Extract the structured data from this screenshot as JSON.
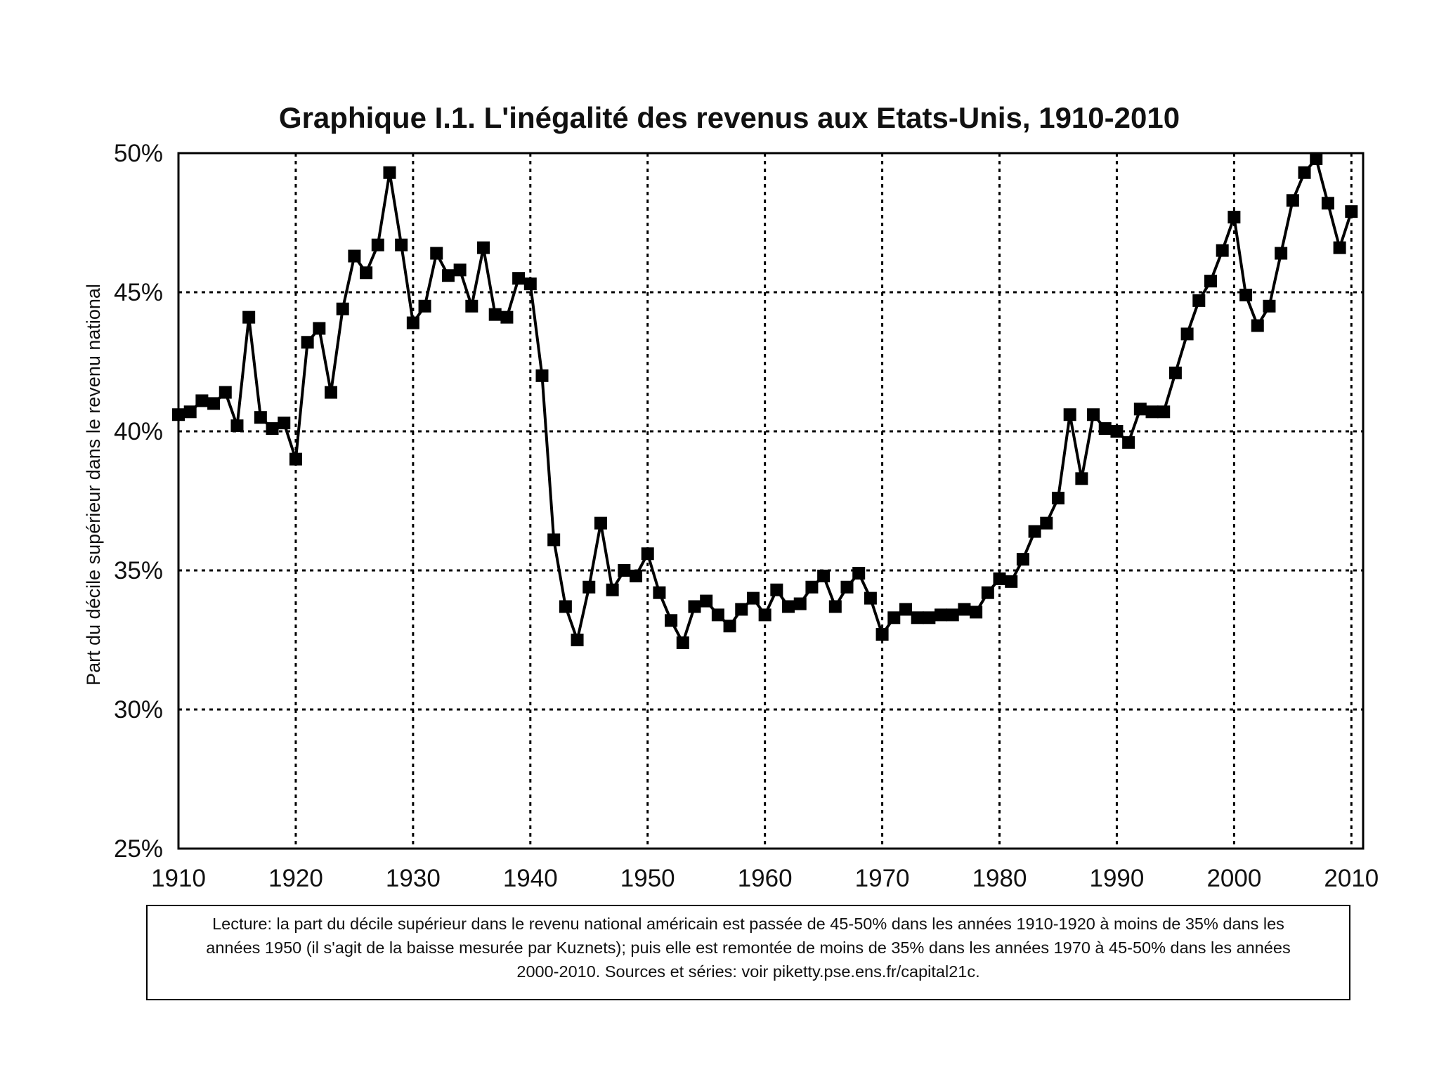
{
  "chart_data": {
    "type": "line",
    "title": "Graphique I.1. L'inégalité des revenus aux Etats-Unis, 1910-2010",
    "xlabel": "",
    "ylabel": "Part du décile supérieur dans le revenu national",
    "xlim": [
      1910,
      2011
    ],
    "ylim": [
      0.25,
      0.5
    ],
    "grid": true,
    "x_ticks": [
      1910,
      1920,
      1930,
      1940,
      1950,
      1960,
      1970,
      1980,
      1990,
      2000,
      2010
    ],
    "x_tick_labels": [
      "1910",
      "1920",
      "1930",
      "1940",
      "1950",
      "1960",
      "1970",
      "1980",
      "1990",
      "2000",
      "2010"
    ],
    "y_ticks": [
      0.25,
      0.3,
      0.35,
      0.4,
      0.45,
      0.5
    ],
    "y_tick_labels": [
      "25%",
      "30%",
      "35%",
      "40%",
      "45%",
      "50%"
    ],
    "series": [
      {
        "color": "#000000",
        "marker": "square",
        "x": [
          1910,
          1911,
          1912,
          1913,
          1914,
          1915,
          1916,
          1917,
          1918,
          1919,
          1920,
          1921,
          1922,
          1923,
          1924,
          1925,
          1926,
          1927,
          1928,
          1929,
          1930,
          1931,
          1932,
          1933,
          1934,
          1935,
          1936,
          1937,
          1938,
          1939,
          1940,
          1941,
          1942,
          1943,
          1944,
          1945,
          1946,
          1947,
          1948,
          1949,
          1950,
          1951,
          1952,
          1953,
          1954,
          1955,
          1956,
          1957,
          1958,
          1959,
          1960,
          1961,
          1962,
          1963,
          1964,
          1965,
          1966,
          1967,
          1968,
          1969,
          1970,
          1971,
          1972,
          1973,
          1974,
          1975,
          1976,
          1977,
          1978,
          1979,
          1980,
          1981,
          1982,
          1983,
          1984,
          1985,
          1986,
          1987,
          1988,
          1989,
          1990,
          1991,
          1992,
          1993,
          1994,
          1995,
          1996,
          1997,
          1998,
          1999,
          2000,
          2001,
          2002,
          2003,
          2004,
          2005,
          2006,
          2007,
          2008,
          2009,
          2010
        ],
        "y": [
          0.406,
          0.407,
          0.411,
          0.41,
          0.414,
          0.402,
          0.441,
          0.405,
          0.401,
          0.403,
          0.39,
          0.432,
          0.437,
          0.414,
          0.444,
          0.463,
          0.457,
          0.467,
          0.493,
          0.467,
          0.439,
          0.445,
          0.464,
          0.456,
          0.458,
          0.445,
          0.466,
          0.442,
          0.441,
          0.455,
          0.453,
          0.42,
          0.361,
          0.337,
          0.325,
          0.344,
          0.367,
          0.343,
          0.35,
          0.348,
          0.356,
          0.342,
          0.332,
          0.324,
          0.337,
          0.339,
          0.334,
          0.33,
          0.336,
          0.34,
          0.334,
          0.343,
          0.337,
          0.338,
          0.344,
          0.348,
          0.337,
          0.344,
          0.349,
          0.34,
          0.327,
          0.333,
          0.336,
          0.333,
          0.333,
          0.334,
          0.334,
          0.336,
          0.335,
          0.342,
          0.347,
          0.346,
          0.354,
          0.364,
          0.367,
          0.376,
          0.406,
          0.383,
          0.406,
          0.401,
          0.4,
          0.396,
          0.408,
          0.407,
          0.407,
          0.421,
          0.435,
          0.447,
          0.454,
          0.465,
          0.477,
          0.449,
          0.438,
          0.445,
          0.464,
          0.483,
          0.493,
          0.498,
          0.482,
          0.466,
          0.479
        ]
      }
    ]
  },
  "note": {
    "line1": "Lecture: la part du décile supérieur dans le revenu national américain est passée de 45-50% dans les années 1910-1920 à moins de 35% dans les",
    "line2": "années 1950 (il s'agit de la baisse mesurée par Kuznets); puis elle est remontée de moins de 35% dans les années 1970 à 45-50% dans les années",
    "line3": "2000-2010. Sources et séries: voir piketty.pse.ens.fr/capital21c."
  }
}
